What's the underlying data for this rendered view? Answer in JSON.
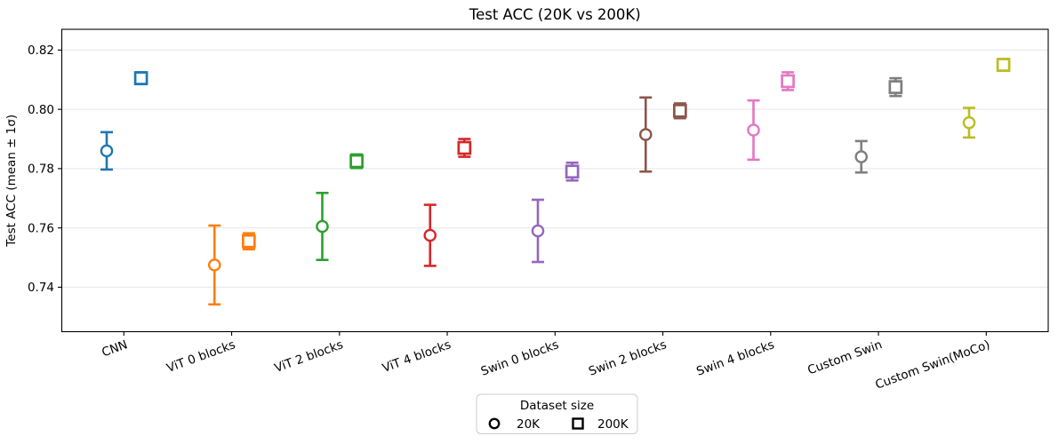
{
  "chart_data": {
    "type": "errorbar-scatter",
    "title": "Test ACC (20K vs 200K)",
    "ylabel": "Test ACC (mean ± 1σ)",
    "xlabel": "",
    "categories": [
      "CNN",
      "ViT 0 blocks",
      "ViT 2 blocks",
      "ViT 4 blocks",
      "Swin 0 blocks",
      "Swin 2 blocks",
      "Swin 4 blocks",
      "Custom Swin",
      "Custom Swin(MoCo)"
    ],
    "category_colors": [
      "#1f77b4",
      "#ff7f0e",
      "#2ca02c",
      "#d62728",
      "#9467bd",
      "#8c564b",
      "#e377c2",
      "#7f7f7f",
      "#bcbd22"
    ],
    "series": [
      {
        "name": "20K",
        "marker": "circle",
        "means": [
          0.786,
          0.7475,
          0.7605,
          0.7575,
          0.759,
          0.7915,
          0.793,
          0.784,
          0.7955
        ],
        "stds": [
          0.0063,
          0.0133,
          0.0113,
          0.0103,
          0.0105,
          0.0125,
          0.01,
          0.0053,
          0.005
        ]
      },
      {
        "name": "200K",
        "marker": "square",
        "means": [
          0.8105,
          0.7555,
          0.7825,
          0.787,
          0.779,
          0.7995,
          0.8095,
          0.8075,
          0.815
        ],
        "stds": [
          0.002,
          0.0027,
          0.0023,
          0.003,
          0.003,
          0.0025,
          0.003,
          0.003,
          0.002
        ]
      }
    ],
    "ylim": [
      0.725,
      0.827
    ],
    "yticks": [
      0.74,
      0.76,
      0.78,
      0.8,
      0.82
    ],
    "ytick_labels": [
      "0.74",
      "0.76",
      "0.78",
      "0.80",
      "0.82"
    ],
    "xtick_rotation_deg": 20,
    "grid": "horizontal-only",
    "grid_color": "#e6e6e6",
    "legend": {
      "title": "Dataset size",
      "position": "bottom-center",
      "marker_color": "#000000",
      "entries": [
        {
          "marker": "circle",
          "label": "20K"
        },
        {
          "marker": "square",
          "label": "200K"
        }
      ]
    }
  }
}
